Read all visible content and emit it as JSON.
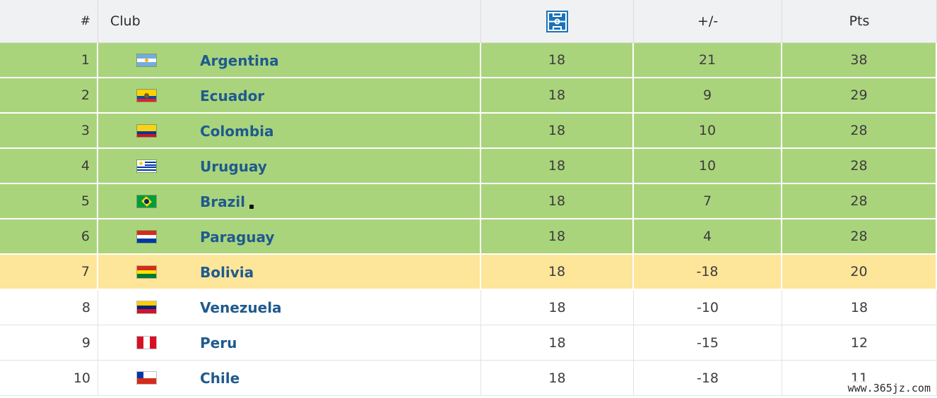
{
  "headers": {
    "rank": "#",
    "club": "Club",
    "played_icon": "pitch-icon",
    "goal_diff": "+/-",
    "points": "Pts"
  },
  "rows": [
    {
      "rank": "1",
      "name": "Argentina",
      "played": "18",
      "goal_diff": "21",
      "points": "38",
      "zone": "green",
      "flag": "argentina-flag"
    },
    {
      "rank": "2",
      "name": "Ecuador",
      "played": "18",
      "goal_diff": "9",
      "points": "29",
      "zone": "green",
      "flag": "ecuador-flag"
    },
    {
      "rank": "3",
      "name": "Colombia",
      "played": "18",
      "goal_diff": "10",
      "points": "28",
      "zone": "green",
      "flag": "colombia-flag"
    },
    {
      "rank": "4",
      "name": "Uruguay",
      "played": "18",
      "goal_diff": "10",
      "points": "28",
      "zone": "green",
      "flag": "uruguay-flag"
    },
    {
      "rank": "5",
      "name": "Brazil",
      "played": "18",
      "goal_diff": "7",
      "points": "28",
      "zone": "green",
      "flag": "brazil-flag"
    },
    {
      "rank": "6",
      "name": "Paraguay",
      "played": "18",
      "goal_diff": "4",
      "points": "28",
      "zone": "green",
      "flag": "paraguay-flag"
    },
    {
      "rank": "7",
      "name": "Bolivia",
      "played": "18",
      "goal_diff": "-18",
      "points": "20",
      "zone": "yellow",
      "flag": "bolivia-flag"
    },
    {
      "rank": "8",
      "name": "Venezuela",
      "played": "18",
      "goal_diff": "-10",
      "points": "18",
      "zone": "white",
      "flag": "venezuela-flag"
    },
    {
      "rank": "9",
      "name": "Peru",
      "played": "18",
      "goal_diff": "-15",
      "points": "12",
      "zone": "white",
      "flag": "peru-flag"
    },
    {
      "rank": "10",
      "name": "Chile",
      "played": "18",
      "goal_diff": "-18",
      "points": "11",
      "zone": "white",
      "flag": "chile-flag"
    }
  ],
  "colors": {
    "qualified_zone": "#aad47c",
    "playoff_zone": "#fde59a",
    "header_bg": "#f0f1f2",
    "club_link": "#1f5a8e",
    "pitch_icon": "#1a73b8"
  },
  "watermark": "www.365jz.com"
}
